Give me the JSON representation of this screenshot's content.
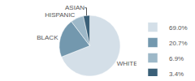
{
  "chart_data": {
    "type": "pie",
    "categories": [
      "WHITE",
      "BLACK",
      "HISPANIC",
      "ASIAN"
    ],
    "values": [
      69.0,
      20.7,
      6.9,
      3.4
    ],
    "value_labels": [
      "69.0%",
      "20.7%",
      "6.9%",
      "3.4%"
    ],
    "colors": [
      "#d4dfe8",
      "#7398ae",
      "#9db8c8",
      "#3a6078"
    ],
    "legend": "right"
  }
}
